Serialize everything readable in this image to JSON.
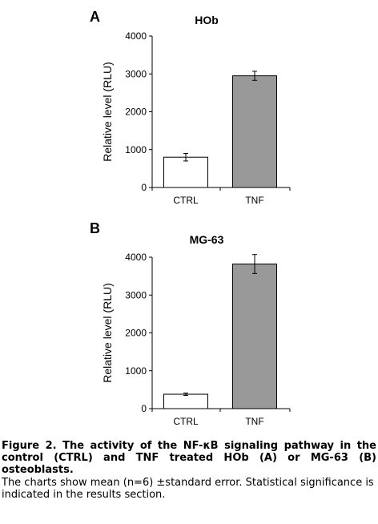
{
  "chart_data": [
    {
      "type": "bar",
      "panel_letter": "A",
      "title": "HOb",
      "ylabel": "Relative level (RLU)",
      "xlabel": "",
      "categories": [
        "CTRL",
        "TNF"
      ],
      "values": [
        800,
        2950
      ],
      "errors": [
        100,
        120
      ],
      "bar_colors": [
        "#ffffff",
        "#999999"
      ],
      "ylim": [
        0,
        4000
      ],
      "yticks": [
        "0",
        "1000",
        "2000",
        "3000",
        "4000"
      ],
      "grid": false,
      "legend": "none"
    },
    {
      "type": "bar",
      "panel_letter": "B",
      "title": "MG-63",
      "ylabel": "Relative level (RLU)",
      "xlabel": "",
      "categories": [
        "CTRL",
        "TNF"
      ],
      "values": [
        380,
        3820
      ],
      "errors": [
        30,
        250
      ],
      "bar_colors": [
        "#ffffff",
        "#999999"
      ],
      "ylim": [
        0,
        4000
      ],
      "yticks": [
        "0",
        "1000",
        "2000",
        "3000",
        "4000"
      ],
      "grid": false,
      "legend": "none"
    }
  ],
  "caption": {
    "bold": "Figure 2. The activity of the NF-κB signaling pathway in the control (CTRL) and TNF treated HOb (A) or MG-63 (B) osteoblasts.",
    "normal": "The charts show mean (n=6) ±standard error. Statistical significance is indicated in the results section."
  }
}
